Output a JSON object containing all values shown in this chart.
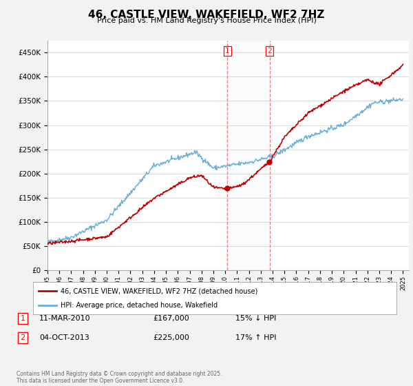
{
  "title": "46, CASTLE VIEW, WAKEFIELD, WF2 7HZ",
  "subtitle": "Price paid vs. HM Land Registry's House Price Index (HPI)",
  "ylim": [
    0,
    475000
  ],
  "yticks": [
    0,
    50000,
    100000,
    150000,
    200000,
    250000,
    300000,
    350000,
    400000,
    450000
  ],
  "hpi_color": "#6aaed6",
  "price_color": "#c00000",
  "marker1_date": 2010.19,
  "marker2_date": 2013.75,
  "marker1_price": 167000,
  "marker2_price": 225000,
  "marker1_label": "11-MAR-2010",
  "marker2_label": "04-OCT-2013",
  "marker1_hpi_pct": "15% ↓ HPI",
  "marker2_hpi_pct": "17% ↑ HPI",
  "legend_line1": "46, CASTLE VIEW, WAKEFIELD, WF2 7HZ (detached house)",
  "legend_line2": "HPI: Average price, detached house, Wakefield",
  "footnote": "Contains HM Land Registry data © Crown copyright and database right 2025.\nThis data is licensed under the Open Government Licence v3.0.",
  "background_color": "#f2f2f2",
  "plot_bg_color": "#ffffff",
  "grid_color": "#cccccc"
}
